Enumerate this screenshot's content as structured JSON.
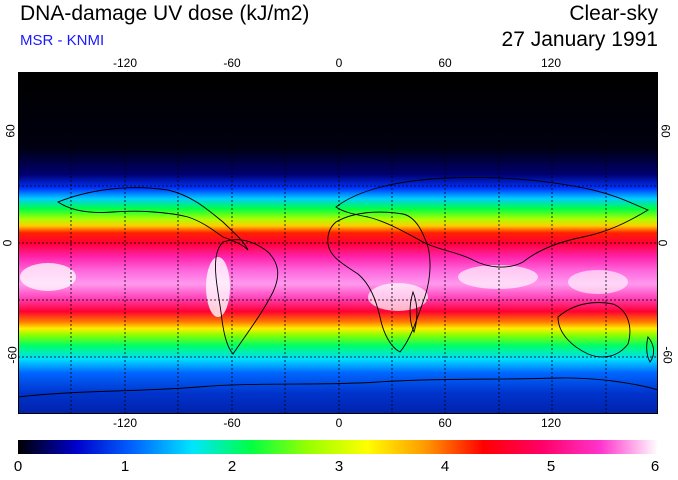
{
  "header": {
    "title": "DNA-damage UV dose (kJ/m2)",
    "source": "MSR - KNMI",
    "condition": "Clear-sky",
    "date": "27 January 1991"
  },
  "map": {
    "projection": "equirectangular",
    "lon_range": [
      -180,
      180
    ],
    "lat_range": [
      -90,
      90
    ],
    "lon_ticks": [
      "-120",
      "-60",
      "0",
      "60",
      "120"
    ],
    "lat_ticks": [
      "60",
      "0",
      "-60"
    ]
  },
  "colorbar": {
    "labels": [
      "0",
      "1",
      "2",
      "3",
      "4",
      "5",
      "6"
    ],
    "stops": [
      "#000000",
      "#0000cc",
      "#0066ff",
      "#00e5ff",
      "#00ff44",
      "#99ff00",
      "#ffff00",
      "#ff9900",
      "#ff0000",
      "#ff0066",
      "#ff33cc",
      "#ffffff"
    ]
  }
}
